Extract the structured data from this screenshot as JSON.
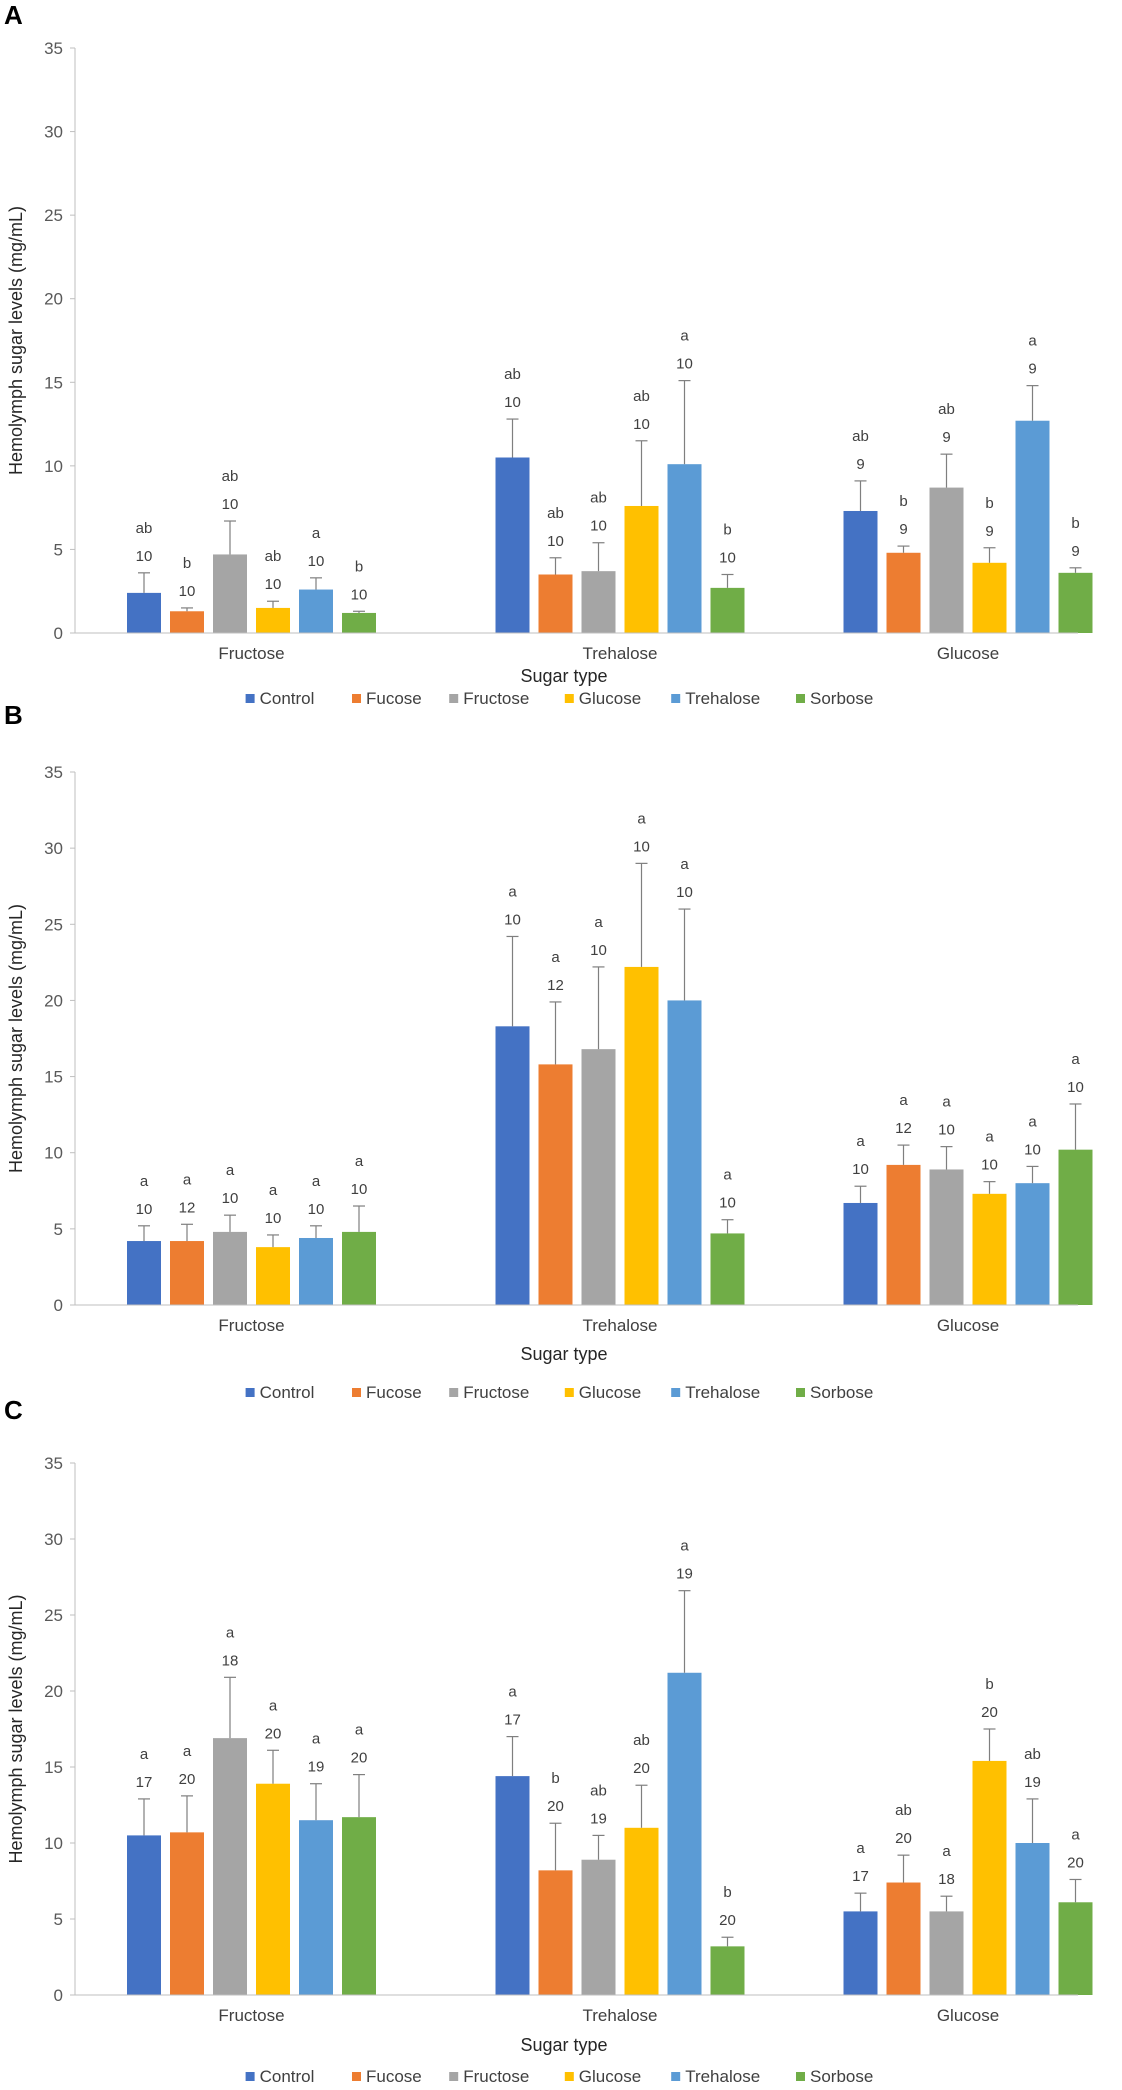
{
  "chart_data": [
    {
      "panel": "A",
      "type": "bar",
      "title": "",
      "xlabel": "Sugar type",
      "ylabel": "Hemolymph sugar levels (mg/mL)",
      "ylim": [
        0,
        35
      ],
      "yticks": [
        0,
        5,
        10,
        15,
        20,
        25,
        30,
        35
      ],
      "categories": [
        "Fructose",
        "Trehalose",
        "Glucose"
      ],
      "legend_position": "bottom",
      "series": [
        {
          "name": "Control",
          "color": "#4472C4",
          "values": [
            2.4,
            10.5,
            7.3
          ],
          "errors": [
            1.2,
            2.3,
            1.8
          ],
          "letters": [
            "ab",
            "ab",
            "ab"
          ],
          "n": [
            "10",
            "10",
            "9"
          ]
        },
        {
          "name": "Fucose",
          "color": "#ED7D31",
          "values": [
            1.3,
            3.5,
            4.8
          ],
          "errors": [
            0.2,
            1.0,
            0.4
          ],
          "letters": [
            "b",
            "ab",
            "b"
          ],
          "n": [
            "10",
            "10",
            "9"
          ]
        },
        {
          "name": "Fructose",
          "color": "#A5A5A5",
          "values": [
            4.7,
            3.7,
            8.7
          ],
          "errors": [
            2.0,
            1.7,
            2.0
          ],
          "letters": [
            "ab",
            "ab",
            "ab"
          ],
          "n": [
            "10",
            "10",
            "9"
          ]
        },
        {
          "name": "Glucose",
          "color": "#FFC000",
          "values": [
            1.5,
            7.6,
            4.2
          ],
          "errors": [
            0.4,
            3.9,
            0.9
          ],
          "letters": [
            "ab",
            "ab",
            "b"
          ],
          "n": [
            "10",
            "10",
            "9"
          ]
        },
        {
          "name": "Trehalose",
          "color": "#5B9BD5",
          "values": [
            2.6,
            10.1,
            12.7
          ],
          "errors": [
            0.7,
            5.0,
            2.1
          ],
          "letters": [
            "a",
            "a",
            "a"
          ],
          "n": [
            "10",
            "10",
            "9"
          ]
        },
        {
          "name": "Sorbose",
          "color": "#70AD47",
          "values": [
            1.2,
            2.7,
            3.6
          ],
          "errors": [
            0.1,
            0.8,
            0.3
          ],
          "letters": [
            "b",
            "b",
            "b"
          ],
          "n": [
            "10",
            "10",
            "9"
          ]
        }
      ]
    },
    {
      "panel": "B",
      "type": "bar",
      "title": "",
      "xlabel": "Sugar type",
      "ylabel": "Hemolymph sugar levels (mg/mL)",
      "ylim": [
        0,
        35
      ],
      "yticks": [
        0,
        5,
        10,
        15,
        20,
        25,
        30,
        35
      ],
      "categories": [
        "Fructose",
        "Trehalose",
        "Glucose"
      ],
      "legend_position": "bottom",
      "series": [
        {
          "name": "Control",
          "color": "#4472C4",
          "values": [
            4.2,
            18.3,
            6.7
          ],
          "errors": [
            1.0,
            5.9,
            1.1
          ],
          "letters": [
            "a",
            "a",
            "a"
          ],
          "n": [
            "10",
            "10",
            "10"
          ]
        },
        {
          "name": "Fucose",
          "color": "#ED7D31",
          "values": [
            4.2,
            15.8,
            9.2
          ],
          "errors": [
            1.1,
            4.1,
            1.3
          ],
          "letters": [
            "a",
            "a",
            "a"
          ],
          "n": [
            "12",
            "12",
            "12"
          ]
        },
        {
          "name": "Fructose",
          "color": "#A5A5A5",
          "values": [
            4.8,
            16.8,
            8.9
          ],
          "errors": [
            1.1,
            5.4,
            1.5
          ],
          "letters": [
            "a",
            "a",
            "a"
          ],
          "n": [
            "10",
            "10",
            "10"
          ]
        },
        {
          "name": "Glucose",
          "color": "#FFC000",
          "values": [
            3.8,
            22.2,
            7.3
          ],
          "errors": [
            0.8,
            6.8,
            0.8
          ],
          "letters": [
            "a",
            "a",
            "a"
          ],
          "n": [
            "10",
            "10",
            "10"
          ]
        },
        {
          "name": "Trehalose",
          "color": "#5B9BD5",
          "values": [
            4.4,
            20.0,
            8.0
          ],
          "errors": [
            0.8,
            6.0,
            1.1
          ],
          "letters": [
            "a",
            "a",
            "a"
          ],
          "n": [
            "10",
            "10",
            "10"
          ]
        },
        {
          "name": "Sorbose",
          "color": "#70AD47",
          "values": [
            4.8,
            4.7,
            10.2
          ],
          "errors": [
            1.7,
            0.9,
            3.0
          ],
          "letters": [
            "a",
            "a",
            "a"
          ],
          "n": [
            "10",
            "10",
            "10"
          ]
        }
      ]
    },
    {
      "panel": "C",
      "type": "bar",
      "title": "",
      "xlabel": "Sugar type",
      "ylabel": "Hemolymph sugar levels (mg/mL)",
      "ylim": [
        0,
        35
      ],
      "yticks": [
        0,
        5,
        10,
        15,
        20,
        25,
        30,
        35
      ],
      "categories": [
        "Fructose",
        "Trehalose",
        "Glucose"
      ],
      "legend_position": "bottom",
      "series": [
        {
          "name": "Control",
          "color": "#4472C4",
          "values": [
            10.5,
            14.4,
            5.5
          ],
          "errors": [
            2.4,
            2.6,
            1.2
          ],
          "letters": [
            "a",
            "a",
            "a"
          ],
          "n": [
            "17",
            "17",
            "17"
          ]
        },
        {
          "name": "Fucose",
          "color": "#ED7D31",
          "values": [
            10.7,
            8.2,
            7.4
          ],
          "errors": [
            2.4,
            3.1,
            1.8
          ],
          "letters": [
            "a",
            "b",
            "ab"
          ],
          "n": [
            "20",
            "20",
            "20"
          ]
        },
        {
          "name": "Fructose",
          "color": "#A5A5A5",
          "values": [
            16.9,
            8.9,
            5.5
          ],
          "errors": [
            4.0,
            1.6,
            1.0
          ],
          "letters": [
            "a",
            "ab",
            "a"
          ],
          "n": [
            "18",
            "19",
            "18"
          ]
        },
        {
          "name": "Glucose",
          "color": "#FFC000",
          "values": [
            13.9,
            11.0,
            15.4
          ],
          "errors": [
            2.2,
            2.8,
            2.1
          ],
          "letters": [
            "a",
            "ab",
            "b"
          ],
          "n": [
            "20",
            "20",
            "20"
          ]
        },
        {
          "name": "Trehalose",
          "color": "#5B9BD5",
          "values": [
            11.5,
            21.2,
            10.0
          ],
          "errors": [
            2.4,
            5.4,
            2.9
          ],
          "letters": [
            "a",
            "a",
            "ab"
          ],
          "n": [
            "19",
            "19",
            "19"
          ]
        },
        {
          "name": "Sorbose",
          "color": "#70AD47",
          "values": [
            11.7,
            3.2,
            6.1
          ],
          "errors": [
            2.8,
            0.6,
            1.5
          ],
          "letters": [
            "a",
            "b",
            "a"
          ],
          "n": [
            "20",
            "20",
            "20"
          ]
        }
      ]
    }
  ]
}
